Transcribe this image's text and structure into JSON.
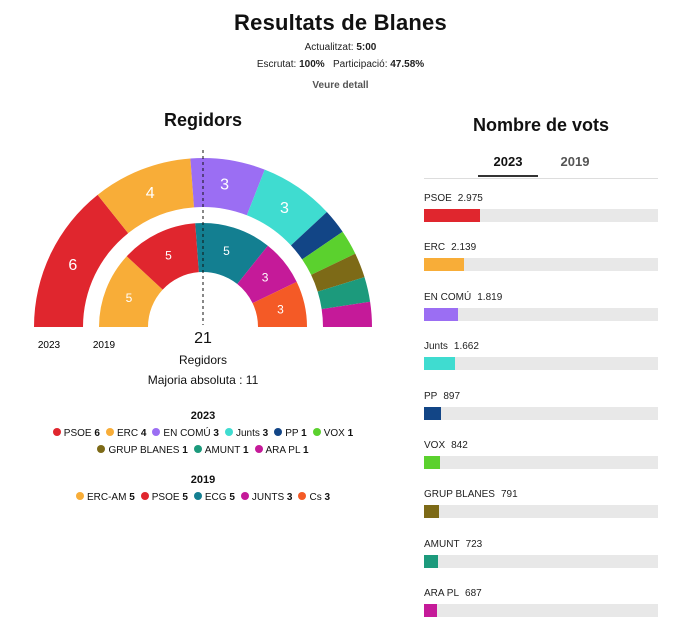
{
  "header": {
    "title": "Resultats de Blanes",
    "updated_label": "Actualitzat:",
    "updated_value": "5:00",
    "counted_label": "Escrutat:",
    "counted_value": "100%",
    "turnout_label": "Participació:",
    "turnout_value": "47.58%",
    "detail_link": "Veure detall"
  },
  "left_title": "Regidors",
  "right_title": "Nombre de vots",
  "center": {
    "total": "21",
    "label": "Regidors",
    "majority": "Majoria absoluta : 11"
  },
  "ring_labels": {
    "outer": "2023",
    "inner": "2019"
  },
  "tabs": [
    "2023",
    "2019"
  ],
  "legend": {
    "year_2023": "2023",
    "year_2019": "2019",
    "items_2023": [
      {
        "name": "PSOE",
        "seats": "6",
        "color": "#e0262e"
      },
      {
        "name": "ERC",
        "seats": "4",
        "color": "#f8ad38"
      },
      {
        "name": "EN COMÚ",
        "seats": "3",
        "color": "#9b6ef3"
      },
      {
        "name": "Junts",
        "seats": "3",
        "color": "#3fdcd0"
      },
      {
        "name": "PP",
        "seats": "1",
        "color": "#124586"
      },
      {
        "name": "VOX",
        "seats": "1",
        "color": "#5bd12e"
      },
      {
        "name": "GRUP BLANES",
        "seats": "1",
        "color": "#7d6a17"
      },
      {
        "name": "AMUNT",
        "seats": "1",
        "color": "#1c9a7c"
      },
      {
        "name": "ARA PL",
        "seats": "1",
        "color": "#c51a99"
      }
    ],
    "items_2019": [
      {
        "name": "ERC-AM",
        "seats": "5",
        "color": "#f8ad38"
      },
      {
        "name": "PSOE",
        "seats": "5",
        "color": "#e0262e"
      },
      {
        "name": "ECG",
        "seats": "5",
        "color": "#137f91"
      },
      {
        "name": "JUNTS",
        "seats": "3",
        "color": "#c51a99"
      },
      {
        "name": "Cs",
        "seats": "3",
        "color": "#f45a26"
      }
    ]
  },
  "chart_data": [
    {
      "type": "pie",
      "title": "Regidors",
      "series": [
        {
          "name": "2023",
          "categories": [
            "PSOE",
            "ERC",
            "EN COMÚ",
            "Junts",
            "PP",
            "VOX",
            "GRUP BLANES",
            "AMUNT",
            "ARA PL"
          ],
          "values": [
            6,
            4,
            3,
            3,
            1,
            1,
            1,
            1,
            1
          ],
          "colors": [
            "#e0262e",
            "#f8ad38",
            "#9b6ef3",
            "#3fdcd0",
            "#124586",
            "#5bd12e",
            "#7d6a17",
            "#1c9a7c",
            "#c51a99"
          ]
        },
        {
          "name": "2019",
          "categories": [
            "ERC-AM",
            "PSOE",
            "ECG",
            "JUNTS",
            "Cs"
          ],
          "values": [
            5,
            5,
            5,
            3,
            3
          ],
          "colors": [
            "#f8ad38",
            "#e0262e",
            "#137f91",
            "#c51a99",
            "#f45a26"
          ]
        }
      ]
    },
    {
      "type": "bar",
      "title": "Nombre de vots",
      "categories": [
        "PSOE",
        "ERC",
        "EN COMÚ",
        "Junts",
        "PP",
        "VOX",
        "GRUP BLANES",
        "AMUNT",
        "ARA PL"
      ],
      "values": [
        2975,
        2139,
        1819,
        1662,
        897,
        842,
        791,
        723,
        687
      ],
      "value_labels": [
        "2.975",
        "2.139",
        "1.819",
        "1.662",
        "897",
        "842",
        "791",
        "723",
        "687"
      ],
      "colors": [
        "#e0262e",
        "#f8ad38",
        "#9b6ef3",
        "#3fdcd0",
        "#124586",
        "#5bd12e",
        "#7d6a17",
        "#1c9a7c",
        "#c51a99"
      ],
      "xlim": [
        0,
        12500
      ]
    }
  ]
}
